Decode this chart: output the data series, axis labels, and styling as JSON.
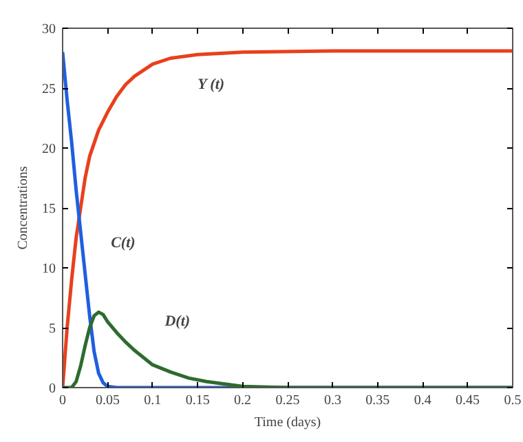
{
  "chart_data": {
    "type": "line",
    "xlabel": "Time (days)",
    "ylabel": "Concentrations",
    "xlim": [
      0,
      0.5
    ],
    "ylim": [
      0,
      30
    ],
    "xticks": [
      0,
      0.05,
      0.1,
      0.15,
      0.2,
      0.25,
      0.3,
      0.35,
      0.4,
      0.45,
      0.5
    ],
    "yticks": [
      0,
      5,
      10,
      15,
      20,
      25,
      30
    ],
    "grid": false,
    "line_style": "solid",
    "marker": "none",
    "series": [
      {
        "name": "Y (t)",
        "color": "#e8401c",
        "x": [
          0,
          0.005,
          0.01,
          0.015,
          0.02,
          0.025,
          0.03,
          0.04,
          0.05,
          0.06,
          0.07,
          0.08,
          0.1,
          0.12,
          0.15,
          0.2,
          0.3,
          0.5
        ],
        "values": [
          0,
          5,
          9,
          12.5,
          15,
          17.5,
          19.3,
          21.5,
          23,
          24.3,
          25.3,
          26,
          27,
          27.5,
          27.8,
          28,
          28.1,
          28.1
        ]
      },
      {
        "name": "C(t)",
        "color": "#1f5fe0",
        "x": [
          0,
          0.005,
          0.01,
          0.015,
          0.02,
          0.025,
          0.03,
          0.035,
          0.04,
          0.045,
          0.05,
          0.06,
          0.5
        ],
        "values": [
          28,
          24,
          20.5,
          16.5,
          13,
          9.5,
          6,
          3,
          1.2,
          0.4,
          0.1,
          0,
          0
        ]
      },
      {
        "name": "D(t)",
        "color": "#2e6b2e",
        "x": [
          0,
          0.01,
          0.015,
          0.02,
          0.025,
          0.03,
          0.035,
          0.04,
          0.045,
          0.05,
          0.06,
          0.07,
          0.08,
          0.09,
          0.1,
          0.12,
          0.14,
          0.16,
          0.18,
          0.2,
          0.25,
          0.5
        ],
        "values": [
          0,
          0,
          0.5,
          1.8,
          3.5,
          5,
          6,
          6.3,
          6.1,
          5.5,
          4.6,
          3.8,
          3.1,
          2.5,
          1.9,
          1.3,
          0.8,
          0.5,
          0.3,
          0.1,
          0,
          0
        ]
      }
    ]
  }
}
